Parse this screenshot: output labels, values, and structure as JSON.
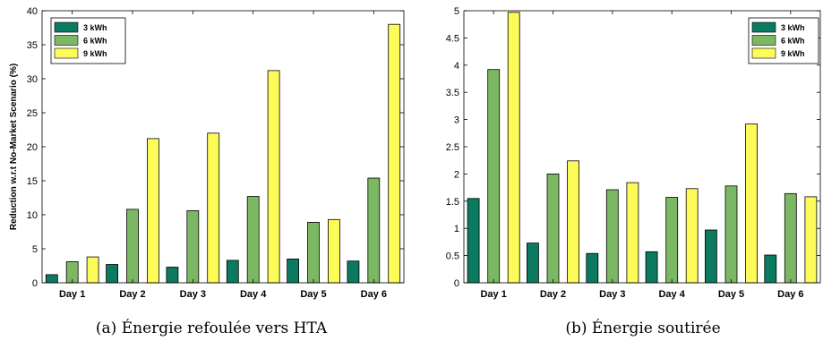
{
  "colors": {
    "3 kWh": "#0b7a60",
    "6 kWh": "#7cb863",
    "9 kWh": "#fdfb57"
  },
  "chart_data": [
    {
      "type": "bar",
      "caption": "(a) Énergie refoulée vers HTA",
      "xlabel": "",
      "ylabel": "Reduction w.r.t No-Market Scenario (%)",
      "ylim": [
        0,
        40
      ],
      "yticks": [
        "0",
        "5",
        "10",
        "15",
        "20",
        "25",
        "30",
        "35",
        "40"
      ],
      "categories": [
        "Day 1",
        "Day 2",
        "Day 3",
        "Day 4",
        "Day 5",
        "Day 6"
      ],
      "series": [
        {
          "name": "3 kWh",
          "values": [
            1.2,
            2.7,
            2.3,
            3.3,
            3.5,
            3.2
          ]
        },
        {
          "name": "6 kWh",
          "values": [
            3.1,
            10.8,
            10.6,
            12.7,
            8.9,
            15.4
          ]
        },
        {
          "name": "9 kWh",
          "values": [
            3.8,
            21.2,
            22.0,
            31.2,
            9.3,
            38.0
          ]
        }
      ],
      "legend": "top-left",
      "grid": false
    },
    {
      "type": "bar",
      "caption": "(b) Énergie soutirée",
      "xlabel": "",
      "ylabel": "",
      "ylim": [
        0,
        5
      ],
      "yticks": [
        "0",
        "0.5",
        "1",
        "1.5",
        "2",
        "2.5",
        "3",
        "3.5",
        "4",
        "4.5",
        "5"
      ],
      "categories": [
        "Day 1",
        "Day 2",
        "Day 3",
        "Day 4",
        "Day 5",
        "Day 6"
      ],
      "series": [
        {
          "name": "3 kWh",
          "values": [
            1.55,
            0.73,
            0.54,
            0.57,
            0.97,
            0.51
          ]
        },
        {
          "name": "6 kWh",
          "values": [
            3.92,
            2.0,
            1.71,
            1.57,
            1.78,
            1.64
          ]
        },
        {
          "name": "9 kWh",
          "values": [
            4.97,
            2.24,
            1.84,
            1.73,
            2.92,
            1.58
          ]
        }
      ],
      "legend": "top-right",
      "grid": false
    }
  ]
}
